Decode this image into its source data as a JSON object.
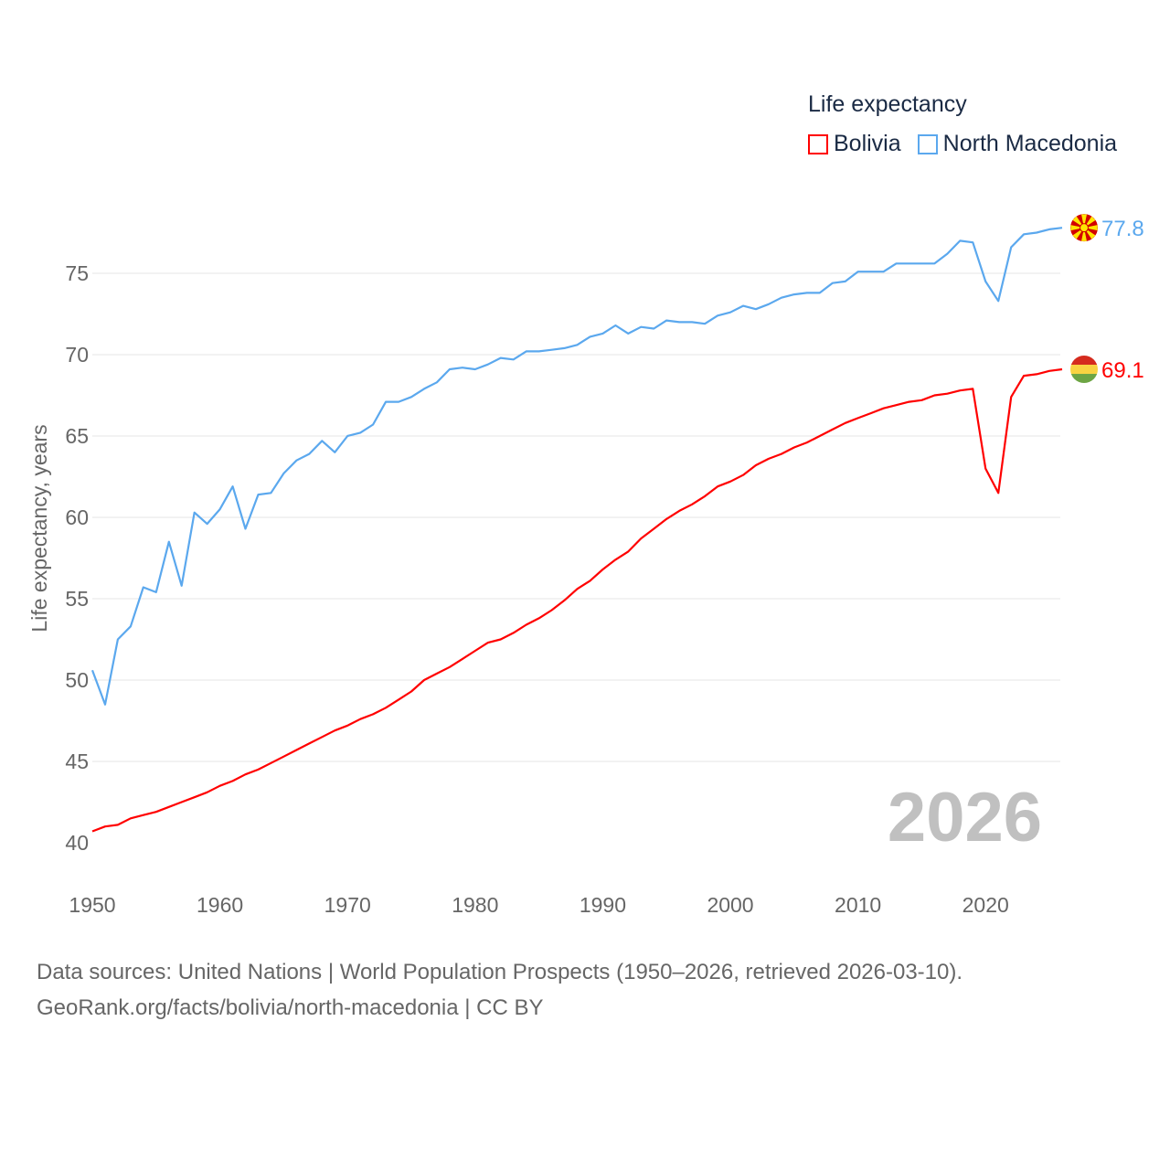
{
  "legend": {
    "title": "Life expectancy",
    "items": [
      {
        "label": "Bolivia",
        "color": "#ff0000"
      },
      {
        "label": "North Macedonia",
        "color": "#5ba8ee"
      }
    ]
  },
  "year_label": "2026",
  "footer": {
    "line1": "Data sources: United Nations | World Population Prospects (1950–2026, retrieved 2026-03-10).",
    "line2": "GeoRank.org/facts/bolivia/north-macedonia | CC BY"
  },
  "chart_data": {
    "type": "line",
    "title": "Life expectancy",
    "xlabel": "",
    "ylabel": "Life expectancy, years",
    "xlim": [
      1950,
      2026
    ],
    "ylim": [
      40,
      78
    ],
    "xticks": [
      "1950",
      "1960",
      "1970",
      "1980",
      "1990",
      "2000",
      "2010",
      "2020"
    ],
    "yticks": [
      "40",
      "45",
      "50",
      "55",
      "60",
      "65",
      "70",
      "75"
    ],
    "grid": true,
    "legend_position": "top-right",
    "x_start": 1950,
    "series": [
      {
        "name": "North Macedonia",
        "color": "#5ba8ee",
        "end_label": "77.8",
        "flag": "north-macedonia",
        "values": [
          50.6,
          48.5,
          52.5,
          53.3,
          55.7,
          55.4,
          58.5,
          55.8,
          60.3,
          59.6,
          60.5,
          61.9,
          59.3,
          61.4,
          61.5,
          62.7,
          63.5,
          63.9,
          64.7,
          64.0,
          65.0,
          65.2,
          65.7,
          67.1,
          67.1,
          67.4,
          67.9,
          68.3,
          69.1,
          69.2,
          69.1,
          69.4,
          69.8,
          69.7,
          70.2,
          70.2,
          70.3,
          70.4,
          70.6,
          71.1,
          71.3,
          71.8,
          71.3,
          71.7,
          71.6,
          72.1,
          72.0,
          72.0,
          71.9,
          72.4,
          72.6,
          73.0,
          72.8,
          73.1,
          73.5,
          73.7,
          73.8,
          73.8,
          74.4,
          74.5,
          75.1,
          75.1,
          75.1,
          75.6,
          75.6,
          75.6,
          75.6,
          76.2,
          77.0,
          76.9,
          74.5,
          73.3,
          76.6,
          77.4,
          77.5,
          77.7,
          77.8
        ]
      },
      {
        "name": "Bolivia",
        "color": "#ff0000",
        "end_label": "69.1",
        "flag": "bolivia",
        "values": [
          40.7,
          41.0,
          41.1,
          41.5,
          41.7,
          41.9,
          42.2,
          42.5,
          42.8,
          43.1,
          43.5,
          43.8,
          44.2,
          44.5,
          44.9,
          45.3,
          45.7,
          46.1,
          46.5,
          46.9,
          47.2,
          47.6,
          47.9,
          48.3,
          48.8,
          49.3,
          50.0,
          50.4,
          50.8,
          51.3,
          51.8,
          52.3,
          52.5,
          52.9,
          53.4,
          53.8,
          54.3,
          54.9,
          55.6,
          56.1,
          56.8,
          57.4,
          57.9,
          58.7,
          59.3,
          59.9,
          60.4,
          60.8,
          61.3,
          61.9,
          62.2,
          62.6,
          63.2,
          63.6,
          63.9,
          64.3,
          64.6,
          65.0,
          65.4,
          65.8,
          66.1,
          66.4,
          66.7,
          66.9,
          67.1,
          67.2,
          67.5,
          67.6,
          67.8,
          67.9,
          63.0,
          61.5,
          67.4,
          68.7,
          68.8,
          69.0,
          69.1
        ]
      }
    ]
  }
}
